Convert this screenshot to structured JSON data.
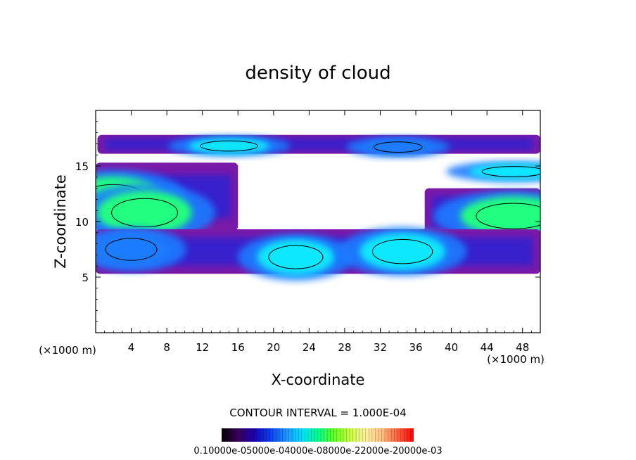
{
  "chart_data": {
    "type": "heatmap",
    "title": "density of cloud",
    "xlabel": "X-coordinate",
    "ylabel": "Z-coordinate",
    "x_unit_label": "(×1000 m)",
    "z_unit_label": "(×1000 m)",
    "xlim": [
      0,
      50
    ],
    "ylim": [
      0,
      20
    ],
    "x_ticks": [
      4,
      8,
      12,
      16,
      20,
      24,
      28,
      32,
      36,
      40,
      44,
      48
    ],
    "y_ticks": [
      5,
      10,
      15
    ],
    "x_tick_labels": [
      "4",
      "8",
      "12",
      "16",
      "20",
      "24",
      "28",
      "32",
      "36",
      "40",
      "44",
      "48"
    ],
    "y_tick_labels": [
      "5",
      "10",
      "15"
    ],
    "contour_interval_text": "CONTOUR INTERVAL = 1.000E-04",
    "colorbar": {
      "min": 0.0001,
      "max": 0.003,
      "ticks_text": "0.10000e-05000e-04000e-08000e-22000e-20000e-03",
      "colors": [
        "#000000",
        "#3a005a",
        "#1a00b0",
        "#0a3cf0",
        "#1e90ff",
        "#00e0ff",
        "#00ff90",
        "#60ff20",
        "#c8ff40",
        "#fff0a0",
        "#ffc080",
        "#ff6040",
        "#ff0000"
      ]
    },
    "colors": {
      "low": "#7a1aa8",
      "mid_low": "#2020d8",
      "mid": "#1e7cff",
      "mid_high": "#10e8ff",
      "high": "#20ff80",
      "contour": "#000000"
    },
    "layers": [
      {
        "z_base": 16.1,
        "z_top": 17.8,
        "x_start": 0.2,
        "x_end": 50,
        "cores": [
          {
            "x": 15,
            "z": 16.8,
            "level": 0.0012
          },
          {
            "x": 34,
            "z": 16.7,
            "level": 0.0009
          },
          {
            "x": 47,
            "z": 14.5,
            "level": 0.0014
          }
        ]
      },
      {
        "z_base": 9.2,
        "z_top": 15.3,
        "x_start": 0,
        "x_end": 16,
        "cores": [
          {
            "x": 2,
            "z": 12,
            "level": 0.0016
          },
          {
            "x": 5.5,
            "z": 10.8,
            "level": 0.0015
          }
        ]
      },
      {
        "z_base": 8.8,
        "z_top": 13,
        "x_start": 37,
        "x_end": 50,
        "cores": [
          {
            "x": 47,
            "z": 10.5,
            "level": 0.0018
          }
        ]
      },
      {
        "z_base": 5.3,
        "z_top": 9.3,
        "x_start": 0,
        "x_end": 50,
        "cores": [
          {
            "x": 4,
            "z": 7.5,
            "level": 0.001
          },
          {
            "x": 22.5,
            "z": 6.8,
            "level": 0.0011
          },
          {
            "x": 34.5,
            "z": 7.3,
            "level": 0.0013
          }
        ]
      }
    ]
  }
}
